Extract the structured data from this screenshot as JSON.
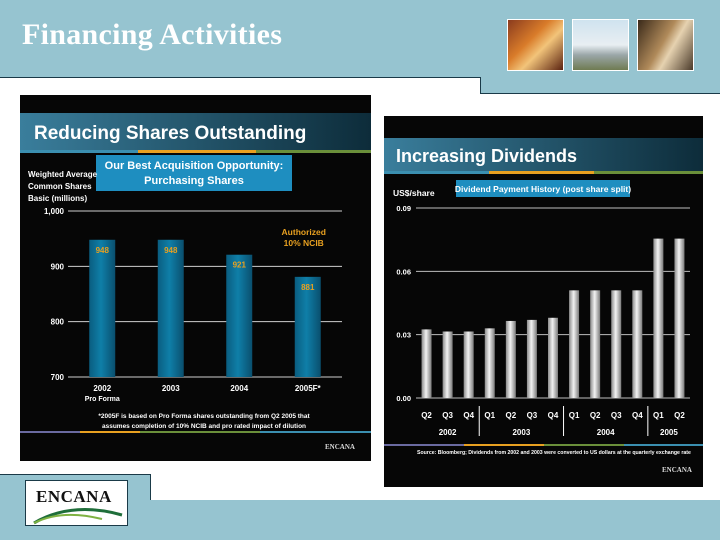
{
  "header": {
    "title": "Financing Activities",
    "photos": [
      "workers-photo",
      "tower-photo",
      "stairs-photo"
    ]
  },
  "footer": {
    "logo_text": "ENCANA",
    "logo_tm": "TM"
  },
  "chart_data": [
    {
      "type": "bar",
      "title": "Reducing Shares Outstanding",
      "callout": "Our Best Acquisition Opportunity: Purchasing Shares",
      "ylabel": "Weighted Average Common Shares Basic (millions)",
      "ylabel_lines": [
        "Weighted Average",
        "Common Shares",
        "Basic (millions)"
      ],
      "categories": [
        "2002",
        "2003",
        "2004",
        "2005F*"
      ],
      "category_sublabels": [
        "Pro Forma",
        "",
        "",
        ""
      ],
      "values": [
        948,
        948,
        921,
        881
      ],
      "value_labels": [
        "948",
        "948",
        "921",
        "881"
      ],
      "yticks": [
        "700",
        "800",
        "900",
        "1,000"
      ],
      "ytick_values": [
        700,
        800,
        900,
        1000
      ],
      "ylim": [
        700,
        1000
      ],
      "annotation": "Authorized 10% NCIB",
      "annotation_lines": [
        "Authorized",
        "10% NCIB"
      ],
      "footnote_lines": [
        "*2005F is based on Pro Forma shares outstanding from Q2 2005 that",
        "assumes completion of 10% NCIB and pro rated impact of dilution"
      ],
      "brand": "ENCANA",
      "colors": {
        "bar": "#0f7fa8",
        "accent": "#e8a020",
        "title_bg": "#2a5f78",
        "callout_bg": "#1e8ec0"
      }
    },
    {
      "type": "bar",
      "title": "Increasing Dividends",
      "callout": "Dividend Payment History (post share split)",
      "ylabel": "US$/share",
      "categories": [
        "Q2",
        "Q3",
        "Q4",
        "Q1",
        "Q2",
        "Q3",
        "Q4",
        "Q1",
        "Q2",
        "Q3",
        "Q4",
        "Q1",
        "Q2"
      ],
      "groups": [
        {
          "label": "2002",
          "count": 3
        },
        {
          "label": "2003",
          "count": 4
        },
        {
          "label": "2004",
          "count": 4
        },
        {
          "label": "2005",
          "count": 2
        }
      ],
      "values": [
        0.0325,
        0.0315,
        0.0315,
        0.033,
        0.0365,
        0.037,
        0.038,
        0.051,
        0.051,
        0.051,
        0.051,
        0.0755,
        0.0755
      ],
      "yticks": [
        "0.00",
        "0.03",
        "0.06",
        "0.09"
      ],
      "ytick_values": [
        0,
        0.03,
        0.06,
        0.09
      ],
      "ylim": [
        0,
        0.09
      ],
      "source": "Source:  Bloomberg; Dividends from 2002 and 2003 were converted to US dollars at the quarterly exchange rate",
      "brand": "ENCANA",
      "colors": {
        "bar": "#d8d8d8",
        "title_bg": "#2a5f78",
        "callout_bg": "#1e8ec0"
      }
    }
  ]
}
